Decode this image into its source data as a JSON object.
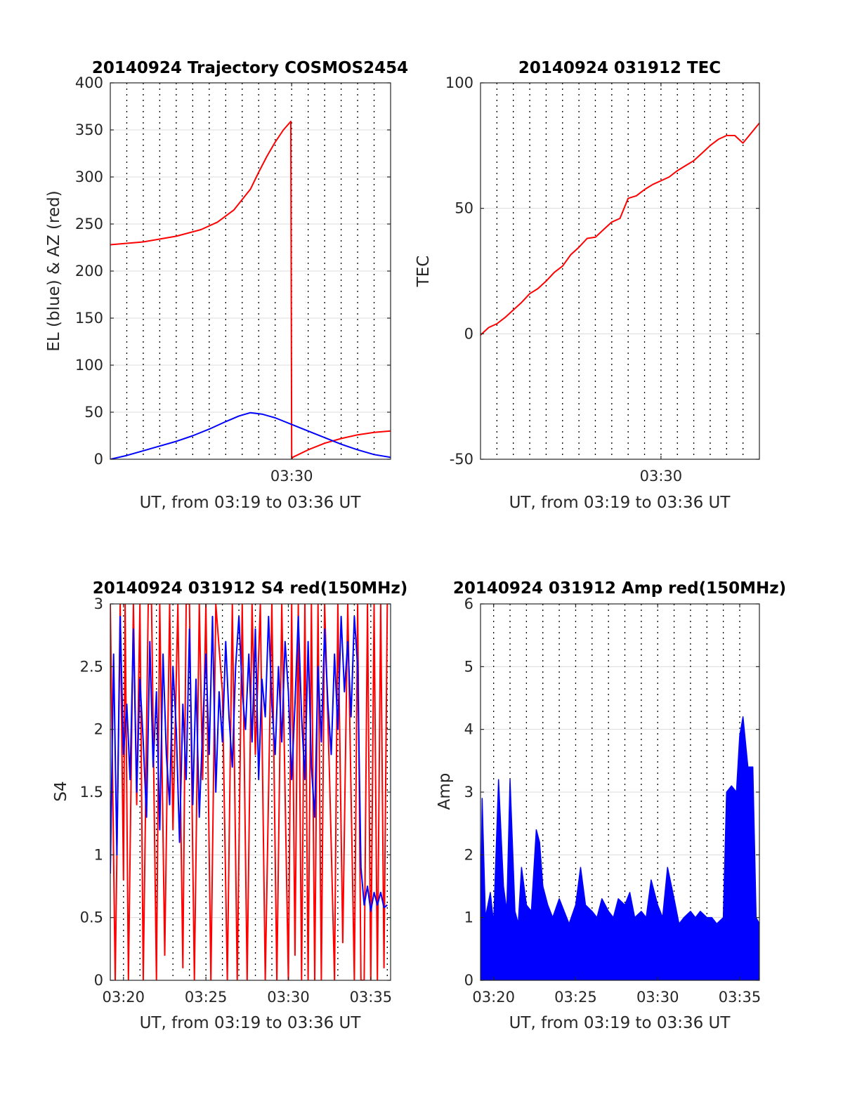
{
  "chart_data": [
    {
      "type": "line",
      "title": "20140924 Trajectory COSMOS2454",
      "xlabel": "UT, from 03:19 to 03:36 UT",
      "ylabel": "EL (blue) & AZ (red)",
      "xlim": [
        19.0,
        36.0
      ],
      "ylim": [
        0,
        400
      ],
      "yticks": [
        0,
        50,
        100,
        150,
        200,
        250,
        300,
        350,
        400
      ],
      "ytick_labels": [
        "0",
        "50",
        "100",
        "150",
        "200",
        "250",
        "300",
        "350",
        "400"
      ],
      "xticks": [
        30
      ],
      "xtick_labels": [
        "03:30"
      ],
      "xgrid_minutes": [
        20,
        21,
        22,
        23,
        24,
        25,
        26,
        27,
        28,
        29,
        30,
        31,
        32,
        33,
        34,
        35
      ],
      "ygrid": true,
      "series": [
        {
          "color": "#ff0000",
          "x": [
            19.0,
            21.0,
            23.0,
            24.5,
            25.5,
            26.5,
            27.5,
            28.0,
            28.5,
            29.0,
            29.5,
            29.95,
            30.0,
            30.05,
            31.0,
            32.0,
            33.0,
            34.0,
            35.0,
            36.0
          ],
          "y": [
            228,
            231,
            237,
            244,
            252,
            265,
            287,
            305,
            322,
            337,
            350,
            359,
            0,
            2,
            10,
            17,
            22,
            26,
            28.5,
            30
          ]
        },
        {
          "color": "#0000ff",
          "x": [
            19.0,
            20.0,
            21.0,
            22.0,
            23.0,
            24.0,
            25.0,
            26.0,
            26.8,
            27.5,
            28.2,
            29.0,
            30.0,
            31.0,
            32.0,
            33.0,
            34.0,
            35.0,
            36.0
          ],
          "y": [
            0,
            4,
            9,
            14,
            19,
            25,
            32,
            40,
            46,
            49.5,
            48,
            44,
            37,
            30,
            23,
            16,
            10,
            5,
            2
          ]
        }
      ]
    },
    {
      "type": "line",
      "title": "20140924 031912 TEC",
      "xlabel": "UT, from 03:19 to 03:36 UT",
      "ylabel": "TEC",
      "xlim": [
        19.0,
        36.0
      ],
      "ylim": [
        -50,
        100
      ],
      "yticks": [
        -50,
        0,
        50,
        100
      ],
      "ytick_labels": [
        "-50",
        "0",
        "50",
        "100"
      ],
      "xticks": [
        30
      ],
      "xtick_labels": [
        "03:30"
      ],
      "xgrid_minutes": [
        20,
        21,
        22,
        23,
        24,
        25,
        26,
        27,
        28,
        29,
        30,
        31,
        32,
        33,
        34,
        35
      ],
      "ygrid": true,
      "series": [
        {
          "color": "#ff0000",
          "x": [
            19.0,
            19.5,
            20.0,
            20.5,
            21.0,
            21.5,
            22.0,
            22.5,
            23.0,
            23.5,
            24.0,
            24.5,
            25.0,
            25.5,
            26.0,
            26.5,
            27.0,
            27.5,
            28.0,
            28.5,
            29.0,
            29.5,
            30.0,
            30.5,
            31.0,
            31.5,
            32.0,
            32.5,
            33.0,
            33.5,
            34.0,
            34.5,
            35.0,
            35.5,
            36.0
          ],
          "y": [
            -0.5,
            2.5,
            4,
            6.5,
            9.5,
            12.5,
            16,
            18,
            21,
            24.5,
            27,
            31.5,
            34.5,
            38,
            38.5,
            41.5,
            44.5,
            46,
            54,
            55,
            57.5,
            59.5,
            61,
            62.5,
            65,
            67,
            69,
            72,
            75,
            77.5,
            79,
            79,
            76,
            80,
            84
          ]
        }
      ]
    },
    {
      "type": "line",
      "title": "20140924 031912 S4 red(150MHz)",
      "xlabel": "UT, from 03:19 to 03:36 UT",
      "ylabel": "S4",
      "xlim": [
        19.2,
        36.2
      ],
      "ylim": [
        0,
        3
      ],
      "yticks": [
        0,
        0.5,
        1,
        1.5,
        2,
        2.5,
        3
      ],
      "ytick_labels": [
        "0",
        "0.5",
        "1",
        "1.5",
        "2",
        "2.5",
        "3"
      ],
      "xticks": [
        20,
        25,
        30,
        35
      ],
      "xtick_labels": [
        "03:20",
        "03:25",
        "03:30",
        "03:35"
      ],
      "xgrid_minutes": [
        20,
        21,
        22,
        23,
        24,
        25,
        26,
        27,
        28,
        29,
        30,
        31,
        32,
        33,
        34,
        35,
        36
      ],
      "ygrid": true,
      "series": [
        {
          "color": "#ff0000",
          "x": [
            19.2,
            19.5,
            19.8,
            20.0,
            20.1,
            20.3,
            20.6,
            20.8,
            21.0,
            21.2,
            21.5,
            21.7,
            22.0,
            22.2,
            22.5,
            22.8,
            23.0,
            23.3,
            23.6,
            23.8,
            24.0,
            24.3,
            24.6,
            24.8,
            25.0,
            25.3,
            25.6,
            26.0,
            26.3,
            26.6,
            26.9,
            27.2,
            27.5,
            27.8,
            28.0,
            28.3,
            28.6,
            29.0,
            29.3,
            29.6,
            30.0,
            30.2,
            30.4,
            30.6,
            30.8,
            31.0,
            31.2,
            31.4,
            31.6,
            31.8,
            32.0,
            32.2,
            32.5,
            32.8,
            33.0,
            33.3,
            33.6,
            34.0,
            34.2,
            34.4,
            34.6,
            34.8,
            35.0,
            35.2,
            35.4,
            35.6,
            35.8,
            36.0
          ],
          "y": [
            3,
            0,
            3,
            0.8,
            3,
            0,
            3,
            1.4,
            3,
            0,
            3,
            3,
            0,
            3,
            0.2,
            3,
            1.2,
            3,
            0.1,
            3,
            3,
            0,
            3,
            1.6,
            3,
            0,
            3,
            2.3,
            0,
            3,
            0,
            3,
            0,
            3,
            1.8,
            3,
            0,
            3,
            0,
            3,
            0,
            3,
            0.2,
            3,
            0,
            3,
            0,
            3,
            0,
            3,
            0,
            3,
            1.6,
            0,
            3,
            0.3,
            3,
            0,
            3,
            0,
            0,
            3,
            0,
            3,
            0,
            3,
            0.1,
            3
          ]
        },
        {
          "color": "#0000ff",
          "x": [
            19.2,
            19.4,
            19.6,
            19.8,
            20.0,
            20.2,
            20.4,
            20.6,
            20.8,
            21.0,
            21.2,
            21.4,
            21.6,
            21.8,
            22.0,
            22.2,
            22.4,
            22.6,
            22.8,
            23.0,
            23.2,
            23.4,
            23.6,
            23.8,
            24.0,
            24.2,
            24.4,
            24.6,
            24.8,
            25.0,
            25.2,
            25.4,
            25.6,
            25.8,
            26.0,
            26.2,
            26.4,
            26.6,
            26.8,
            27.0,
            27.2,
            27.4,
            27.6,
            27.8,
            28.0,
            28.2,
            28.4,
            28.6,
            28.8,
            29.0,
            29.2,
            29.4,
            29.6,
            29.8,
            30.0,
            30.2,
            30.4,
            30.6,
            30.8,
            31.0,
            31.2,
            31.4,
            31.6,
            31.8,
            32.0,
            32.2,
            32.4,
            32.6,
            32.8,
            33.0,
            33.2,
            33.4,
            33.6,
            33.8,
            34.0,
            34.2,
            34.4,
            34.6,
            34.8,
            35.0,
            35.2,
            35.4,
            35.6,
            35.8,
            36.0
          ],
          "y": [
            0.85,
            2.6,
            1.0,
            2.9,
            1.8,
            2.2,
            1.6,
            2.8,
            1.5,
            2.4,
            1.9,
            1.3,
            2.7,
            1.7,
            2.3,
            1.2,
            2.6,
            1.8,
            1.4,
            2.5,
            2.0,
            1.1,
            2.2,
            1.6,
            2.8,
            1.4,
            2.4,
            1.3,
            2.0,
            2.6,
            1.8,
            2.9,
            1.5,
            2.3,
            1.9,
            2.7,
            2.1,
            1.7,
            2.5,
            2.9,
            2.3,
            2.0,
            2.6,
            1.9,
            2.8,
            1.6,
            2.4,
            2.1,
            2.9,
            2.2,
            1.8,
            2.5,
            1.9,
            2.7,
            2.3,
            1.6,
            2.2,
            2.9,
            2.1,
            1.6,
            2.7,
            1.7,
            1.3,
            2.5,
            1.9,
            2.8,
            2.2,
            1.8,
            2.6,
            2.0,
            2.9,
            2.3,
            2.7,
            2.1,
            2.9,
            2.5,
            0.9,
            0.6,
            0.75,
            0.55,
            0.7,
            0.6,
            0.7,
            0.58,
            0.6
          ]
        }
      ]
    },
    {
      "type": "line",
      "title": "20140924 031912 Amp red(150MHz)",
      "xlabel": "UT, from 03:19 to 03:36 UT",
      "ylabel": "Amp",
      "xlim": [
        19.2,
        36.2
      ],
      "ylim": [
        0,
        6
      ],
      "yticks": [
        0,
        1,
        2,
        3,
        4,
        5,
        6
      ],
      "ytick_labels": [
        "0",
        "1",
        "2",
        "3",
        "4",
        "5",
        "6"
      ],
      "xticks": [
        20,
        25,
        30,
        35
      ],
      "xtick_labels": [
        "03:20",
        "03:25",
        "03:30",
        "03:35"
      ],
      "xgrid_minutes": [
        20,
        21,
        22,
        23,
        24,
        25,
        26,
        27,
        28,
        29,
        30,
        31,
        32,
        33,
        34,
        35
      ],
      "ygrid": true,
      "series": [
        {
          "color": "#0000ff",
          "name": "",
          "envelope_x": [
            19.2,
            19.3,
            19.5,
            19.8,
            20.0,
            20.3,
            20.6,
            20.8,
            21.0,
            21.3,
            21.5,
            21.7,
            22.0,
            22.3,
            22.6,
            22.8,
            23.0,
            23.3,
            23.6,
            24.0,
            24.3,
            24.6,
            25.0,
            25.3,
            25.6,
            26.0,
            26.3,
            26.6,
            27.0,
            27.3,
            27.6,
            28.0,
            28.3,
            28.6,
            29.0,
            29.3,
            29.6,
            30.0,
            30.3,
            30.6,
            31.0,
            31.3,
            31.6,
            32.0,
            32.3,
            32.6,
            33.0,
            33.3,
            33.6,
            34.0,
            34.2,
            34.5,
            34.8,
            35.0,
            35.2,
            35.5,
            35.8,
            36.0,
            36.2
          ],
          "envelope_y": [
            0.9,
            2.9,
            1.0,
            1.4,
            0.9,
            3.2,
            1.5,
            1.1,
            3.2,
            1.1,
            0.9,
            1.8,
            1.2,
            1.1,
            2.4,
            2.2,
            1.5,
            1.2,
            1.0,
            1.3,
            1.1,
            0.9,
            1.2,
            1.8,
            1.2,
            1.1,
            1.0,
            1.3,
            1.1,
            1.0,
            1.3,
            1.2,
            1.4,
            1.0,
            1.1,
            1.0,
            1.6,
            1.2,
            1.0,
            1.8,
            1.3,
            0.9,
            1.0,
            1.1,
            1.0,
            1.1,
            1.0,
            1.0,
            0.9,
            1.0,
            3.0,
            3.1,
            3.0,
            3.9,
            4.2,
            3.4,
            3.4,
            1.0,
            0.9
          ]
        }
      ]
    }
  ]
}
